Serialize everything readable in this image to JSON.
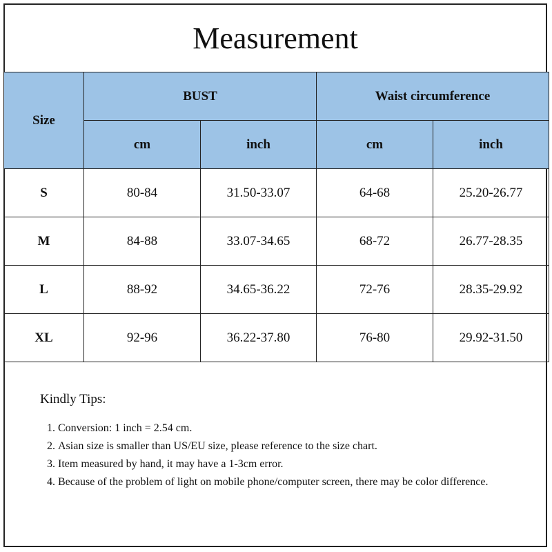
{
  "title": "Measurement",
  "headers": {
    "size": "Size",
    "bust": "BUST",
    "waist": "Waist circumference",
    "cm": "cm",
    "inch": "inch"
  },
  "colors": {
    "header_bg": "#9dc3e6",
    "border": "#222222"
  },
  "rows": [
    {
      "size": "S",
      "bust_cm": "80-84",
      "bust_inch": "31.50-33.07",
      "waist_cm": "64-68",
      "waist_inch": "25.20-26.77"
    },
    {
      "size": "M",
      "bust_cm": "84-88",
      "bust_inch": "33.07-34.65",
      "waist_cm": "68-72",
      "waist_inch": "26.77-28.35"
    },
    {
      "size": "L",
      "bust_cm": "88-92",
      "bust_inch": "34.65-36.22",
      "waist_cm": "72-76",
      "waist_inch": "28.35-29.92"
    },
    {
      "size": "XL",
      "bust_cm": "92-96",
      "bust_inch": "36.22-37.80",
      "waist_cm": "76-80",
      "waist_inch": "29.92-31.50"
    }
  ],
  "tips": {
    "heading": "Kindly Tips:",
    "items": [
      "Conversion: 1 inch = 2.54 cm.",
      "Asian size is smaller than US/EU size, please reference to the size chart.",
      "Item measured by hand, it may have a 1-3cm error.",
      "Because of the problem of light on mobile phone/computer screen, there may be color difference."
    ]
  }
}
